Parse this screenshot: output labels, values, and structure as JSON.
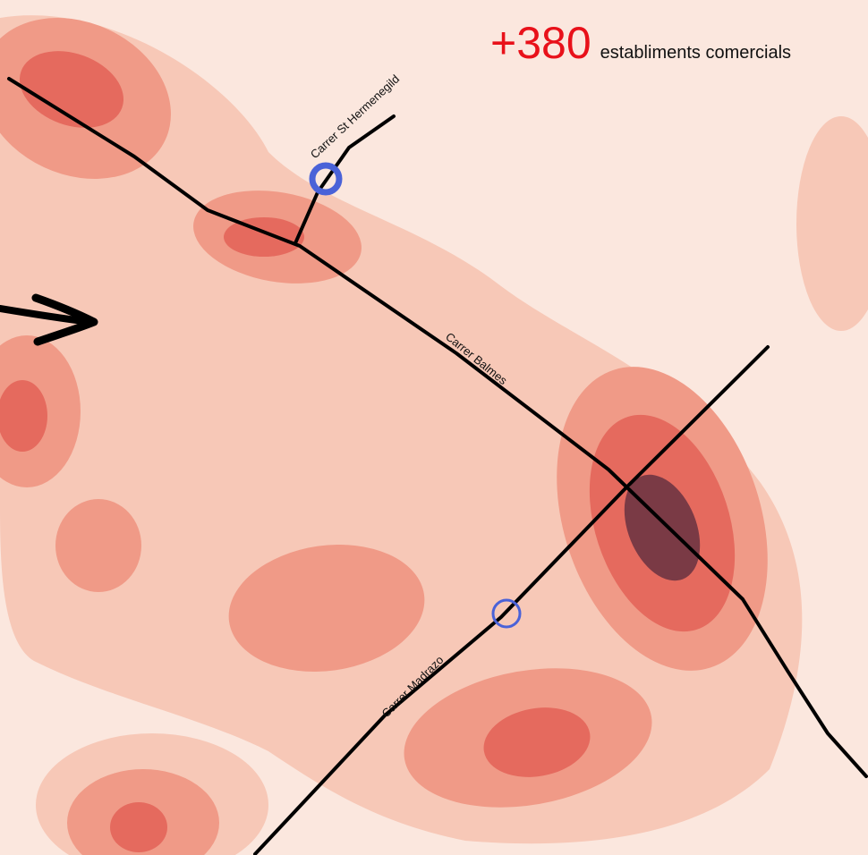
{
  "headline": {
    "count": "+380",
    "label": "establiments comercials",
    "count_color": "#e8111a"
  },
  "streets": {
    "hermenegild": "Carrer St Hermenegild",
    "balmes": "Carrer Balmes",
    "madrazo": "Carrer Madrazo"
  },
  "colors": {
    "heat_base": "#fbe7de",
    "heat_low": "#f7c8b7",
    "heat_mid": "#f09a87",
    "heat_high": "#e56a5e",
    "heat_peak": "#7a3a45",
    "street_line": "#000000",
    "marker": "#4a62d8"
  },
  "icons": {
    "entry_arrow": "arrow-right-icon",
    "marker": "circle-marker-icon"
  }
}
